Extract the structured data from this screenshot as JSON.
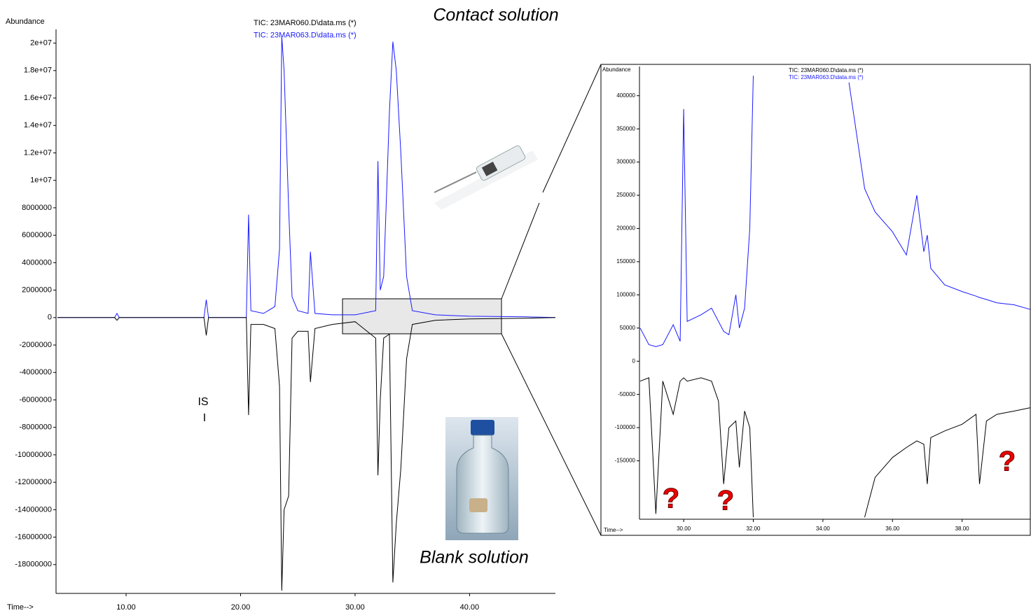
{
  "chart_data": [
    {
      "type": "line",
      "ylabel": "Abundance",
      "xlabel": "Time-->",
      "legend": [
        "TIC: 23MAR060.D\\data.ms (*)",
        "TIC: 23MAR063.D\\data.ms (*)"
      ],
      "annotations": [
        "Contact solution",
        "Blank solution",
        "IS",
        "I"
      ],
      "xlim": [
        3.88,
        47.5
      ],
      "ylim": [
        -20100000,
        21000000
      ],
      "xticks": [
        {
          "value": 10,
          "label": "10.00"
        },
        {
          "value": 20,
          "label": "20.00"
        },
        {
          "value": 30,
          "label": "30.00"
        },
        {
          "value": 40,
          "label": "40.00"
        }
      ],
      "yticks": [
        {
          "value": 20000000,
          "label": "2e+07"
        },
        {
          "value": 18000000,
          "label": "1.8e+07"
        },
        {
          "value": 16000000,
          "label": "1.6e+07"
        },
        {
          "value": 14000000,
          "label": "1.4e+07"
        },
        {
          "value": 12000000,
          "label": "1.2e+07"
        },
        {
          "value": 10000000,
          "label": "1e+07"
        },
        8000000,
        6000000,
        4000000,
        2000000,
        0,
        -2000000,
        -4000000,
        -6000000,
        -8000000,
        -10000000,
        -12000000,
        -14000000,
        -16000000,
        -18000000
      ],
      "x": [
        4,
        6,
        8,
        9,
        9.2,
        9.4,
        12,
        16.8,
        17,
        17.2,
        20,
        20.5,
        20.7,
        20.9,
        22,
        23,
        23.4,
        23.6,
        23.8,
        24.2,
        24.5,
        25,
        25.9,
        26.1,
        26.5,
        28,
        30,
        31.8,
        32,
        32.2,
        32.5,
        33,
        33.3,
        33.6,
        34,
        34.5,
        35,
        37,
        40,
        45,
        47.5
      ],
      "series": [
        {
          "name": "TIC: 23MAR063.D\\data.ms (*)",
          "color": "#1a1aff",
          "values": [
            0,
            0,
            0,
            0,
            300000,
            0,
            0,
            0,
            1300000,
            0,
            0,
            0,
            7500000,
            500000,
            300000,
            800000,
            5000000,
            20500000,
            18000000,
            8000000,
            1500000,
            500000,
            300000,
            4800000,
            300000,
            200000,
            200000,
            500000,
            11400000,
            2000000,
            3000000,
            15000000,
            20100000,
            18000000,
            12000000,
            3000000,
            500000,
            200000,
            100000,
            50000,
            0
          ]
        },
        {
          "name": "TIC: 23MAR060.D\\data.ms (*)",
          "color": "#000000",
          "values": [
            0,
            0,
            0,
            0,
            -200000,
            0,
            0,
            0,
            -1300000,
            0,
            0,
            0,
            -7100000,
            -500000,
            -500000,
            -800000,
            -5000000,
            -19900000,
            -14000000,
            -13000000,
            -1500000,
            -1000000,
            -1000000,
            -4700000,
            -800000,
            -500000,
            -300000,
            -1500000,
            -11500000,
            -6000000,
            -1500000,
            -1200000,
            -19300000,
            -15000000,
            -11000000,
            -3000000,
            -500000,
            -200000,
            -100000,
            -50000,
            0
          ]
        }
      ]
    },
    {
      "type": "line",
      "ylabel": "Abundance",
      "xlabel": "Time-->",
      "legend": [
        "TIC: 23MAR060.D\\data.ms (*)",
        "TIC: 23MAR063.D\\data.ms (*)"
      ],
      "annotations": [
        "?",
        "?",
        "?"
      ],
      "xlim": [
        28.73,
        39.96
      ],
      "ylim": [
        -238000,
        444000
      ],
      "xticks": [
        {
          "value": 30,
          "label": "30.00"
        },
        {
          "value": 32,
          "label": "32.00"
        },
        {
          "value": 34,
          "label": "34.00"
        },
        {
          "value": 36,
          "label": "36.00"
        },
        {
          "value": 38,
          "label": "38.00"
        }
      ],
      "yticks": [
        400000,
        350000,
        300000,
        250000,
        200000,
        150000,
        100000,
        50000,
        0,
        -50000,
        -100000,
        -150000
      ],
      "x": [
        28.75,
        29.0,
        29.2,
        29.4,
        29.7,
        29.9,
        30.0,
        30.1,
        30.5,
        30.8,
        31.0,
        31.15,
        31.3,
        31.5,
        31.6,
        31.75,
        31.9,
        32.0,
        33.5,
        34.75,
        35.2,
        35.5,
        36.0,
        36.4,
        36.7,
        36.9,
        37.0,
        37.1,
        37.5,
        38.0,
        38.4,
        38.5,
        38.7,
        39.0,
        39.5,
        39.96
      ],
      "series": [
        {
          "name": "TIC: 23MAR063.D\\data.ms (*)",
          "color": "#1a1aff",
          "values": [
            50000,
            25000,
            22000,
            25000,
            55000,
            30000,
            380000,
            60000,
            70000,
            80000,
            60000,
            45000,
            40000,
            100000,
            50000,
            80000,
            200000,
            430000,
            null,
            420000,
            260000,
            225000,
            195000,
            160000,
            250000,
            165000,
            190000,
            140000,
            115000,
            105000,
            98000,
            96000,
            93000,
            88000,
            85000,
            78000
          ]
        },
        {
          "name": "TIC: 23MAR060.D\\data.ms (*)",
          "color": "#000000",
          "values": [
            -30000,
            -25000,
            -230000,
            -30000,
            -80000,
            -30000,
            -25000,
            -30000,
            -25000,
            -30000,
            -60000,
            -185000,
            -100000,
            -90000,
            -160000,
            -75000,
            -100000,
            -235000,
            null,
            null,
            -235000,
            -175000,
            -145000,
            -130000,
            -120000,
            -125000,
            -185000,
            -115000,
            -105000,
            -95000,
            -80000,
            -185000,
            -90000,
            -80000,
            -75000,
            -70000
          ]
        }
      ]
    }
  ]
}
